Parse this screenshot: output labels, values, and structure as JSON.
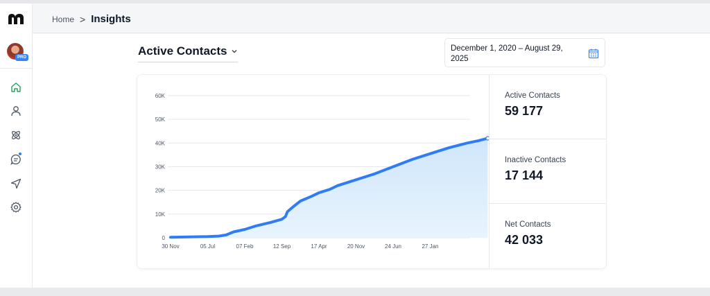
{
  "breadcrumb": {
    "home": "Home",
    "separator": ">",
    "current": "Insights"
  },
  "metric_selector": {
    "label": "Active Contacts",
    "icon": "chevron-down-icon"
  },
  "date_range": {
    "text": "December 1, 2020 – August 29, 2025",
    "icon": "calendar-icon"
  },
  "sidebar": {
    "logo": "M",
    "avatar_badge": "PRO",
    "items": [
      {
        "name": "home-icon",
        "active": true
      },
      {
        "name": "user-icon",
        "active": false
      },
      {
        "name": "atom-icon",
        "active": false
      },
      {
        "name": "chat-icon",
        "active": false,
        "notification": true
      },
      {
        "name": "send-icon",
        "active": false
      },
      {
        "name": "gear-icon",
        "active": false
      }
    ]
  },
  "stats": [
    {
      "label": "Active Contacts",
      "value": "59 177"
    },
    {
      "label": "Inactive Contacts",
      "value": "17 144"
    },
    {
      "label": "Net Contacts",
      "value": "42 033"
    }
  ],
  "colors": {
    "accent": "#2f7cf6",
    "fill": "#dbeefc",
    "active_nav": "#22a35a"
  },
  "chart_data": {
    "type": "area",
    "x_tick_labels": [
      "30 Nov",
      "05 Jul",
      "07 Feb",
      "12 Sep",
      "17 Apr",
      "20 Nov",
      "24 Jun",
      "27 Jan"
    ],
    "y_tick_labels": [
      "0",
      "10K",
      "20K",
      "30K",
      "40K",
      "50K",
      "60K"
    ],
    "ylim": [
      0,
      60000
    ],
    "grid": true,
    "series": [
      {
        "values": [
          [
            0,
            200
          ],
          [
            0.5,
            350
          ],
          [
            1.0,
            500
          ],
          [
            1.3,
            700
          ],
          [
            1.5,
            1200
          ],
          [
            1.7,
            2500
          ],
          [
            2.0,
            3500
          ],
          [
            2.3,
            5000
          ],
          [
            2.7,
            6500
          ],
          [
            3.0,
            7800
          ],
          [
            3.1,
            9000
          ],
          [
            3.15,
            11000
          ],
          [
            3.3,
            13000
          ],
          [
            3.5,
            15500
          ],
          [
            3.8,
            17500
          ],
          [
            4.0,
            19000
          ],
          [
            4.3,
            20500
          ],
          [
            4.5,
            22000
          ],
          [
            5.0,
            24500
          ],
          [
            5.5,
            27000
          ],
          [
            6.0,
            30000
          ],
          [
            6.5,
            33000
          ],
          [
            7.0,
            35500
          ],
          [
            7.5,
            38000
          ],
          [
            8.0,
            40000
          ],
          [
            8.3,
            41000
          ],
          [
            8.55,
            42000
          ]
        ]
      }
    ]
  }
}
